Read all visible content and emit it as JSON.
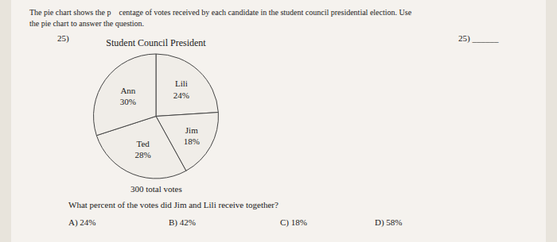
{
  "chart_data": {
    "type": "pie",
    "title": "Student Council President",
    "subtitle": "300 total votes",
    "categories": [
      "Lili",
      "Jim",
      "Ted",
      "Ann"
    ],
    "values": [
      24,
      18,
      28,
      30
    ],
    "value_labels": [
      "24%",
      "18%",
      "28%",
      "30%"
    ],
    "data_labels": true,
    "colors": [
      "#f0ede8",
      "#f0ede8",
      "#f0ede8",
      "#f0ede8"
    ],
    "annotations": [
      "The pie chart shows the p    centage of votes received by each candidate in the student council presidential election. Use",
      "the pie chart to answer the question.",
      "25)",
      "25) ______",
      "What percent of the votes did Jim and Lili receive together?",
      "A) 24%",
      "B) 42%",
      "C) 18%",
      "D) 58%"
    ]
  }
}
